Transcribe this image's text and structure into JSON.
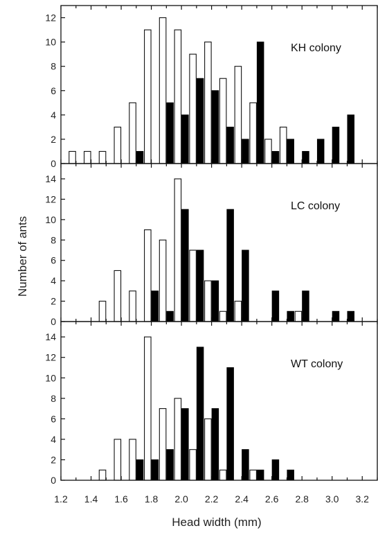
{
  "chart_data": [
    {
      "type": "bar",
      "panel_label": "KH colony",
      "ylim": [
        0,
        13
      ],
      "yticks": [
        0,
        2,
        4,
        6,
        8,
        10,
        12
      ],
      "xlim": [
        1.2,
        3.3
      ],
      "series": [
        {
          "style": "open",
          "x": [
            1.3,
            1.4,
            1.5,
            1.6,
            1.7,
            1.8,
            1.9,
            2.0,
            2.1,
            2.2,
            2.3,
            2.4,
            2.5,
            2.6,
            2.7
          ],
          "values": [
            1,
            1,
            1,
            3,
            5,
            11,
            12,
            11,
            9,
            10,
            7,
            8,
            5,
            2,
            3
          ]
        },
        {
          "style": "filled",
          "x": [
            1.7,
            1.9,
            2.0,
            2.1,
            2.2,
            2.3,
            2.4,
            2.5,
            2.6,
            2.7,
            2.8,
            2.9,
            3.0,
            3.1
          ],
          "values": [
            1,
            5,
            4,
            7,
            6,
            3,
            2,
            10,
            1,
            2,
            1,
            2,
            3,
            4
          ]
        }
      ]
    },
    {
      "type": "bar",
      "panel_label": "LC colony",
      "ylim": [
        0,
        15.5
      ],
      "yticks": [
        0,
        2,
        4,
        6,
        8,
        10,
        12,
        14
      ],
      "xlim": [
        1.2,
        3.3
      ],
      "series": [
        {
          "style": "open",
          "x": [
            1.5,
            1.6,
            1.7,
            1.8,
            1.9,
            2.0,
            2.1,
            2.2,
            2.3,
            2.4,
            2.8
          ],
          "values": [
            2,
            5,
            3,
            9,
            8,
            14,
            7,
            4,
            1,
            2,
            1
          ]
        },
        {
          "style": "filled",
          "x": [
            1.8,
            1.9,
            2.0,
            2.1,
            2.2,
            2.3,
            2.4,
            2.6,
            2.7,
            2.8,
            3.0,
            3.1
          ],
          "values": [
            3,
            1,
            11,
            7,
            4,
            11,
            7,
            3,
            1,
            3,
            1,
            1
          ]
        }
      ]
    },
    {
      "type": "bar",
      "panel_label": "WT colony",
      "ylim": [
        0,
        15.5
      ],
      "yticks": [
        0,
        2,
        4,
        6,
        8,
        10,
        12,
        14
      ],
      "xlim": [
        1.2,
        3.3
      ],
      "series": [
        {
          "style": "open",
          "x": [
            1.5,
            1.6,
            1.7,
            1.8,
            1.9,
            2.0,
            2.1,
            2.2,
            2.3,
            2.5
          ],
          "values": [
            1,
            4,
            4,
            14,
            7,
            8,
            3,
            6,
            1,
            1
          ]
        },
        {
          "style": "filled",
          "x": [
            1.7,
            1.8,
            1.9,
            2.0,
            2.1,
            2.2,
            2.3,
            2.4,
            2.5,
            2.6,
            2.7
          ],
          "values": [
            2,
            2,
            3,
            7,
            13,
            7,
            11,
            3,
            1,
            2,
            1
          ]
        }
      ]
    }
  ],
  "axes": {
    "ylabel": "Number of ants",
    "xlabel": "Head width (mm)",
    "xticks": [
      "1.2",
      "1.4",
      "1.6",
      "1.8",
      "2.0",
      "2.2",
      "2.4",
      "2.6",
      "2.8",
      "3.0",
      "3.2"
    ]
  }
}
